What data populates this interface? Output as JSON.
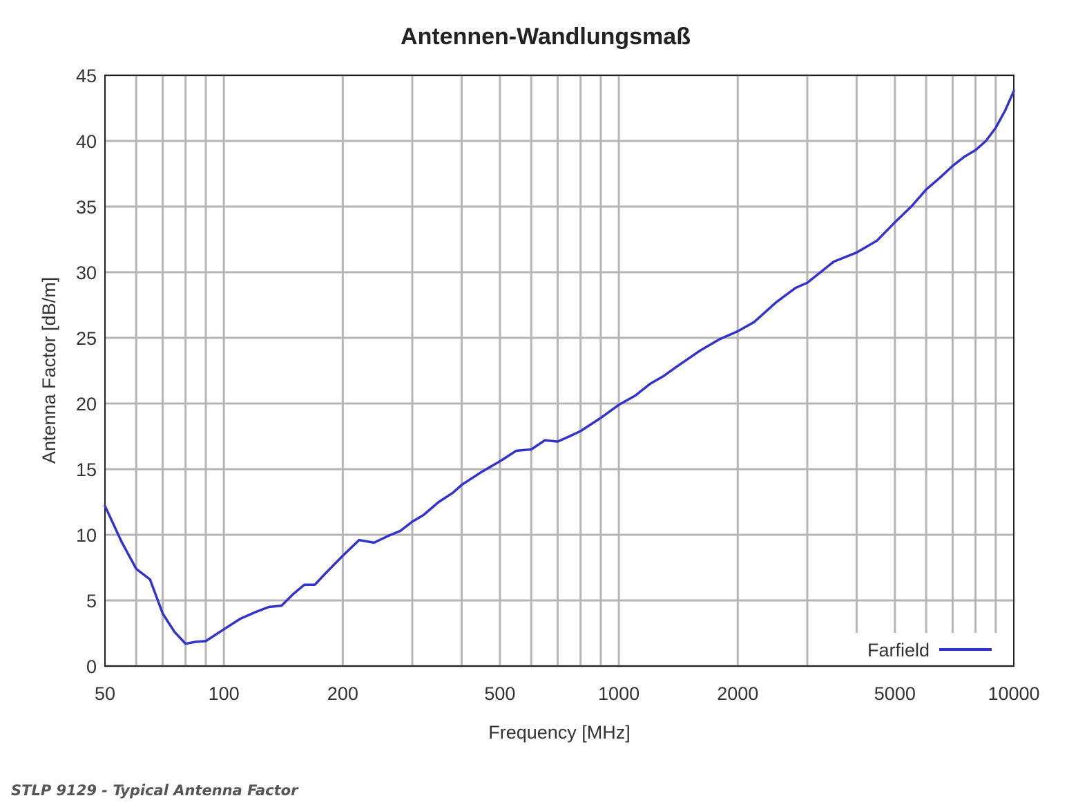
{
  "caption": "STLP 9129 - Typical Antenna Factor",
  "chart_data": {
    "type": "line",
    "title": "Antennen-Wandlungsmaß",
    "xlabel": "Frequency [MHz]",
    "ylabel": "Antenna Factor [dB/m]",
    "x_scale": "log",
    "xlim": [
      50,
      10000
    ],
    "ylim": [
      0,
      45
    ],
    "x_ticks": [
      50,
      100,
      200,
      500,
      1000,
      2000,
      5000,
      10000
    ],
    "y_ticks": [
      0,
      5,
      10,
      15,
      20,
      25,
      30,
      35,
      40,
      45
    ],
    "grid": true,
    "legend": "bottom-right",
    "line_color": "#3333cc",
    "series": [
      {
        "name": "Farfield",
        "x": [
          50,
          55,
          60,
          65,
          70,
          75,
          80,
          85,
          90,
          100,
          110,
          120,
          130,
          140,
          150,
          160,
          170,
          180,
          200,
          220,
          240,
          260,
          280,
          300,
          320,
          350,
          380,
          400,
          450,
          500,
          550,
          600,
          650,
          700,
          750,
          800,
          900,
          1000,
          1100,
          1200,
          1300,
          1400,
          1600,
          1800,
          2000,
          2200,
          2500,
          2800,
          3000,
          3500,
          4000,
          4500,
          5000,
          5500,
          6000,
          6500,
          7000,
          7500,
          8000,
          8500,
          9000,
          9500,
          10000
        ],
        "y": [
          12.2,
          9.5,
          7.4,
          6.6,
          4.0,
          2.6,
          1.7,
          1.85,
          1.9,
          2.8,
          3.6,
          4.1,
          4.5,
          4.6,
          5.5,
          6.2,
          6.2,
          7.0,
          8.4,
          9.6,
          9.4,
          9.9,
          10.3,
          11.0,
          11.5,
          12.5,
          13.2,
          13.8,
          14.8,
          15.6,
          16.4,
          16.5,
          17.2,
          17.1,
          17.5,
          17.9,
          18.9,
          19.9,
          20.6,
          21.5,
          22.1,
          22.8,
          24.0,
          24.9,
          25.5,
          26.2,
          27.7,
          28.8,
          29.2,
          30.8,
          31.5,
          32.4,
          33.8,
          35.0,
          36.3,
          37.2,
          38.1,
          38.8,
          39.3,
          40.0,
          41.0,
          42.3,
          43.8
        ]
      }
    ]
  }
}
